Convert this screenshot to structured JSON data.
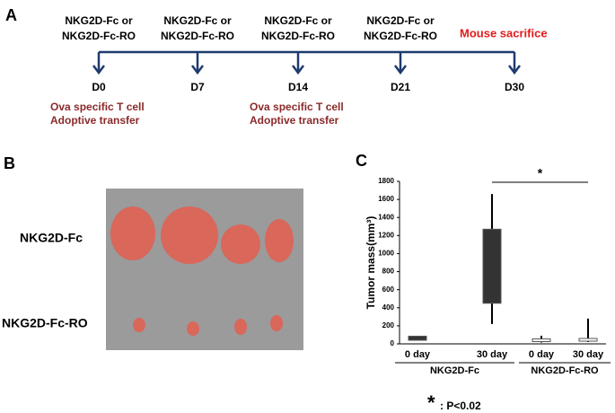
{
  "panels": {
    "a": "A",
    "b": "B",
    "c": "C"
  },
  "timeline": {
    "events": [
      {
        "treatment": [
          "NKG2D-Fc or",
          "NKG2D-Fc-RO"
        ],
        "day": "D0",
        "note": [
          "Ova specific T cell",
          "Adoptive transfer"
        ]
      },
      {
        "treatment": [
          "NKG2D-Fc or",
          "NKG2D-Fc-RO"
        ],
        "day": "D7"
      },
      {
        "treatment": [
          "NKG2D-Fc or",
          "NKG2D-Fc-RO"
        ],
        "day": "D14",
        "note": [
          "Ova specific T cell",
          "Adoptive transfer"
        ]
      },
      {
        "treatment": [
          "NKG2D-Fc or",
          "NKG2D-Fc-RO"
        ],
        "day": "D21"
      }
    ],
    "final": {
      "label": "Mouse sacrifice",
      "day": "D30"
    }
  },
  "photo": {
    "row_labels": [
      "NKG2D-Fc",
      "NKG2D-Fc-RO"
    ]
  },
  "chart_data": {
    "type": "box",
    "ylabel": "Tumor mass(mm³)",
    "categories": [
      "0 day",
      "30 day",
      "0 day",
      "30 day"
    ],
    "groups": [
      {
        "name": "NKG2D-Fc"
      },
      {
        "name": "NKG2D-Fc-RO"
      }
    ],
    "boxes": [
      {
        "min": 40,
        "q1": 40,
        "q3": 85,
        "max": 85,
        "color": "#333333"
      },
      {
        "min": 220,
        "q1": 450,
        "q3": 1270,
        "max": 1660,
        "color": "#333333"
      },
      {
        "min": 15,
        "q1": 25,
        "q3": 55,
        "max": 90,
        "color": "#ffffff"
      },
      {
        "min": 20,
        "q1": 30,
        "q3": 60,
        "max": 280,
        "color": "#ffffff"
      }
    ],
    "ylim": [
      0,
      1800
    ],
    "yticks": [
      0,
      200,
      400,
      600,
      800,
      1000,
      1200,
      1400,
      1600,
      1800
    ],
    "significance": "*",
    "footnote": {
      "symbol": "*",
      "text": ": P<0.02"
    }
  }
}
